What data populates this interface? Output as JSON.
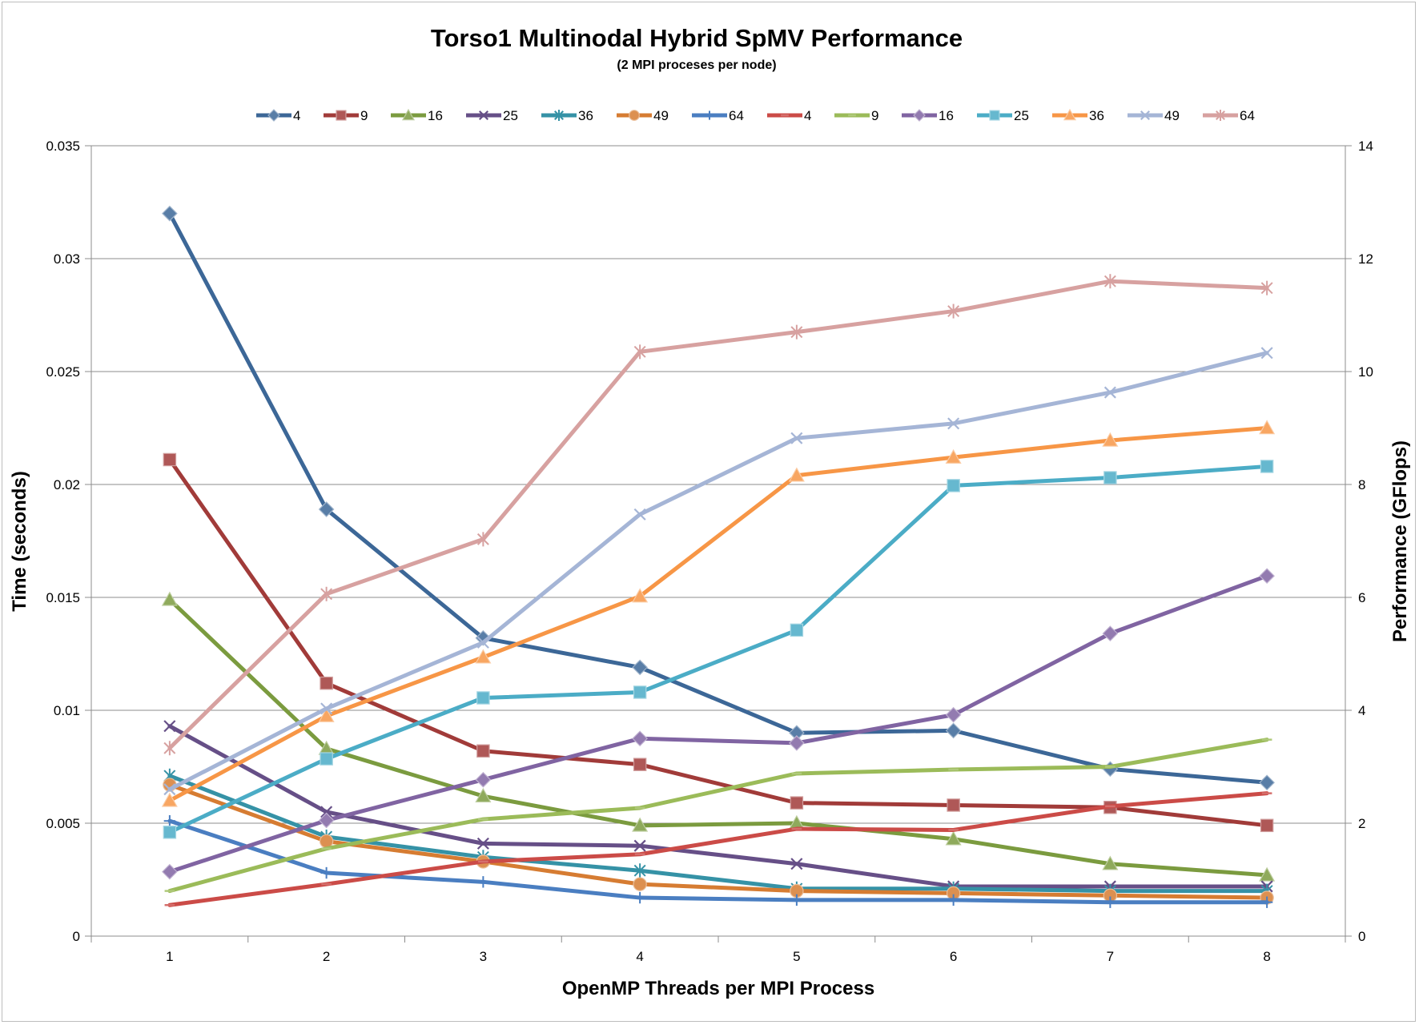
{
  "chart_data": {
    "type": "line",
    "title": "Torso1 Multinodal Hybrid SpMV Performance",
    "subtitle": "(2 MPI proceses per node)",
    "xlabel": "OpenMP Threads per MPI Process",
    "ylabel_left": "Time (seconds)",
    "ylabel_right": "Performance (GFlops)",
    "x": [
      1,
      2,
      3,
      4,
      5,
      6,
      7,
      8
    ],
    "x_tick_labels": [
      "1",
      "2",
      "3",
      "4",
      "5",
      "6",
      "7",
      "8"
    ],
    "y_left": {
      "min": 0,
      "max": 0.035,
      "ticks": [
        0,
        0.005,
        0.01,
        0.015,
        0.02,
        0.025,
        0.03,
        0.035
      ],
      "tick_labels": [
        "0",
        "0.005",
        "0.01",
        "0.015",
        "0.02",
        "0.025",
        "0.03",
        "0.035"
      ]
    },
    "y_right": {
      "min": 0,
      "max": 14,
      "ticks": [
        0,
        2,
        4,
        6,
        8,
        10,
        12,
        14
      ],
      "tick_labels": [
        "0",
        "2",
        "4",
        "6",
        "8",
        "10",
        "12",
        "14"
      ]
    },
    "grid": "horizontal",
    "legend_position": "top",
    "series": [
      {
        "name": "4",
        "axis": "left",
        "color": "#3C6797",
        "marker": "diamond",
        "values": [
          0.032,
          0.0189,
          0.0132,
          0.0119,
          0.009,
          0.0091,
          0.0074,
          0.0068
        ]
      },
      {
        "name": "9",
        "axis": "left",
        "color": "#A13B39",
        "marker": "square",
        "values": [
          0.0211,
          0.0112,
          0.0082,
          0.0076,
          0.0059,
          0.0058,
          0.0057,
          0.0049
        ]
      },
      {
        "name": "16",
        "axis": "left",
        "color": "#7B9B3F",
        "marker": "triangle",
        "values": [
          0.0149,
          0.0083,
          0.0062,
          0.0049,
          0.005,
          0.0043,
          0.0032,
          0.0027
        ]
      },
      {
        "name": "25",
        "axis": "left",
        "color": "#664F87",
        "marker": "x",
        "values": [
          0.0093,
          0.0055,
          0.0041,
          0.004,
          0.0032,
          0.0022,
          0.0022,
          0.0022
        ]
      },
      {
        "name": "36",
        "axis": "left",
        "color": "#3592A6",
        "marker": "star",
        "values": [
          0.0071,
          0.0044,
          0.0035,
          0.0029,
          0.0021,
          0.0021,
          0.002,
          0.002
        ]
      },
      {
        "name": "49",
        "axis": "left",
        "color": "#D67C32",
        "marker": "circle",
        "values": [
          0.0067,
          0.0042,
          0.0033,
          0.0023,
          0.002,
          0.0019,
          0.0018,
          0.0017
        ]
      },
      {
        "name": "64",
        "axis": "left",
        "color": "#4A7EC1",
        "marker": "plus",
        "values": [
          0.0051,
          0.0028,
          0.0024,
          0.0017,
          0.0016,
          0.0016,
          0.0015,
          0.0015
        ]
      },
      {
        "name": "4",
        "axis": "right",
        "color": "#CB4B47",
        "marker": "dash",
        "values": [
          0.55,
          0.92,
          1.32,
          1.45,
          1.9,
          1.88,
          2.3,
          2.53
        ]
      },
      {
        "name": "9",
        "axis": "right",
        "color": "#9BBB59",
        "marker": "dash",
        "values": [
          0.8,
          1.55,
          2.07,
          2.27,
          2.88,
          2.95,
          3.0,
          3.48
        ]
      },
      {
        "name": "16",
        "axis": "right",
        "color": "#8064A2",
        "marker": "diamond",
        "values": [
          1.14,
          2.05,
          2.77,
          3.5,
          3.42,
          3.92,
          5.36,
          6.38
        ]
      },
      {
        "name": "25",
        "axis": "right",
        "color": "#4BACC6",
        "marker": "square",
        "values": [
          1.84,
          3.14,
          4.22,
          4.32,
          5.42,
          7.98,
          8.12,
          8.32
        ]
      },
      {
        "name": "36",
        "axis": "right",
        "color": "#F79646",
        "marker": "triangle",
        "values": [
          2.4,
          3.9,
          4.94,
          6.02,
          8.16,
          8.48,
          8.78,
          9.0
        ]
      },
      {
        "name": "49",
        "axis": "right",
        "color": "#A5B5D6",
        "marker": "x",
        "values": [
          2.6,
          4.03,
          5.2,
          7.47,
          8.82,
          9.08,
          9.63,
          10.33
        ]
      },
      {
        "name": "64",
        "axis": "right",
        "color": "#D7A1A0",
        "marker": "star",
        "values": [
          3.33,
          6.06,
          7.03,
          10.35,
          10.7,
          11.07,
          11.6,
          11.48
        ]
      }
    ]
  }
}
